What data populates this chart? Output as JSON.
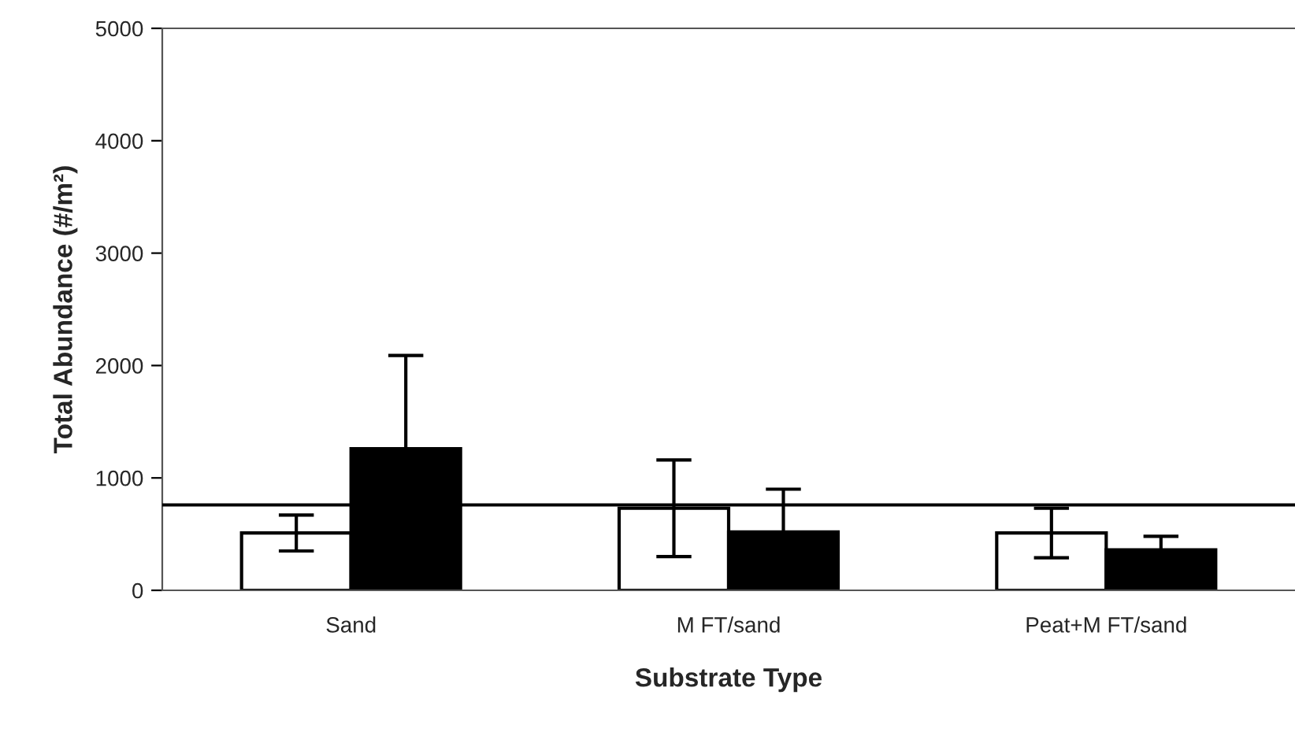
{
  "chart_data": {
    "type": "bar",
    "xlabel": "Substrate Type",
    "ylabel": "Total Abundance (#/m²)",
    "categories": [
      "Sand",
      "M FT/sand",
      "Peat+M FT/sand"
    ],
    "series": [
      {
        "color": "#ffffff",
        "values": [
          510,
          730,
          510
        ],
        "errors": [
          160,
          430,
          220
        ]
      },
      {
        "color": "#000000",
        "values": [
          1260,
          520,
          360
        ],
        "errors": [
          830,
          380,
          120
        ]
      }
    ],
    "ylim": [
      0,
      5000
    ],
    "yticks": [
      0,
      1000,
      2000,
      3000,
      4000,
      5000
    ],
    "ref_lines": [
      {
        "axis": "y",
        "value": 760,
        "color": "#000000"
      }
    ],
    "grid": false,
    "legend": false
  }
}
